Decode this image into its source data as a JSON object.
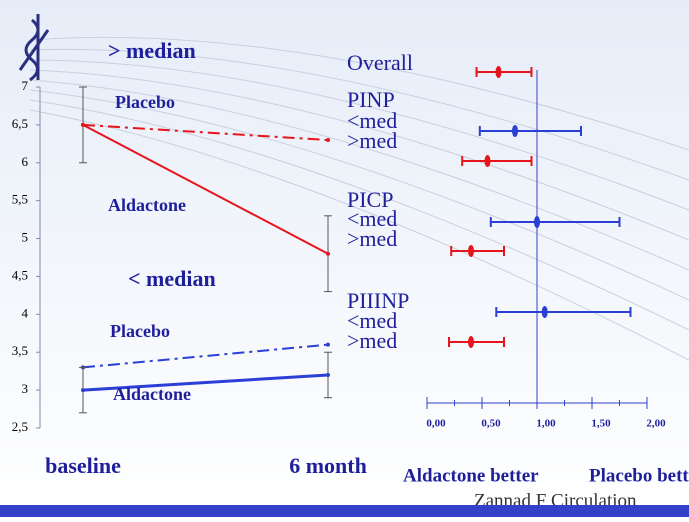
{
  "chart_data": [
    {
      "type": "line",
      "categories": [
        "baseline",
        "6 month"
      ],
      "annotations": [
        "> median",
        "< median"
      ],
      "ylim": [
        2.5,
        7
      ],
      "yticks": [
        {
          "value": 2.5,
          "label": "2,5"
        },
        3,
        {
          "value": 3.5,
          "label": "3,5"
        },
        4,
        {
          "value": 4.5,
          "label": "4,5"
        },
        5,
        {
          "value": 5.5,
          "label": "5,5"
        },
        6,
        {
          "value": 6.5,
          "label": "6,5"
        },
        7
      ],
      "series": [
        {
          "name": "Placebo",
          "color": "#e8141c",
          "dash": "dashdot",
          "values": [
            6.5,
            6.3
          ],
          "errors": [
            null,
            null
          ]
        },
        {
          "name": "Aldactone",
          "color": "#e8141c",
          "dash": "solid",
          "values": [
            6.5,
            4.8
          ],
          "errors": [
            0.5,
            0.5
          ]
        },
        {
          "name": "Placebo",
          "color": "#2b3fd6",
          "dash": "dashdot",
          "values": [
            3.3,
            3.6
          ],
          "errors": [
            null,
            null
          ]
        },
        {
          "name": "Aldactone",
          "color": "#2b3fd6",
          "dash": "solid",
          "values": [
            3.0,
            3.2
          ],
          "errors": [
            0.3,
            0.3
          ]
        }
      ]
    },
    {
      "type": "forest",
      "categories": [
        "Overall",
        "PINP",
        "<med",
        ">med",
        "PICP",
        "<med",
        ">med",
        "PIIINP",
        "<med",
        ">med"
      ],
      "values": [
        0.65,
        null,
        0.8,
        0.55,
        null,
        1.0,
        0.4,
        null,
        1.07,
        0.4
      ],
      "lows": [
        0.45,
        null,
        0.48,
        0.32,
        null,
        0.58,
        0.22,
        null,
        0.63,
        0.2
      ],
      "highs": [
        0.95,
        null,
        1.4,
        0.95,
        null,
        1.75,
        0.7,
        null,
        1.85,
        0.7
      ],
      "colors": [
        "#e8141c",
        null,
        "#2b3fd6",
        "#e8141c",
        null,
        "#2b3fd6",
        "#e8141c",
        null,
        "#2b3fd6",
        "#e8141c"
      ],
      "xlim": [
        0,
        2
      ],
      "xticks": [
        {
          "value": 0,
          "label": "0,00"
        },
        {
          "value": 0.5,
          "label": "0,50"
        },
        {
          "value": 1,
          "label": "1,00"
        },
        {
          "value": 1.5,
          "label": "1,50"
        },
        {
          "value": 2,
          "label": "2,00"
        }
      ],
      "reference": 1,
      "xlabels": [
        "Aldactone better",
        "Placebo better"
      ],
      "source": "Zannad F Circulation"
    }
  ]
}
